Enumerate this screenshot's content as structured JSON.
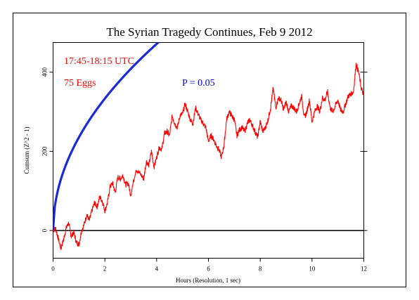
{
  "chart_data": {
    "type": "line",
    "title": "The Syrian Tragedy Continues, Feb 9 2012",
    "xlabel": "Hours (Resolution, 1 sec)",
    "ylabel": "Cumsum (Z^2 - 1)",
    "xlim": [
      0,
      12
    ],
    "ylim": [
      -70,
      475
    ],
    "x_ticks": [
      "0",
      "2",
      "4",
      "6",
      "8",
      "10",
      "12"
    ],
    "x_tick_values": [
      0,
      2,
      4,
      6,
      8,
      10,
      12
    ],
    "y_ticks": [
      "0",
      "200",
      "400"
    ],
    "y_tick_values": [
      0,
      200,
      400
    ],
    "grid": false,
    "annotations": {
      "time_range": "17:45-18:15 UTC",
      "eggs": "75 Eggs",
      "probability": "P = 0.05"
    },
    "colors": {
      "data_line": "#ff0000",
      "envelope": "#1a2bd6",
      "baseline": "#000000",
      "annotation_red": "#ff0000",
      "annotation_blue": "#0000dd"
    },
    "series": [
      {
        "role": "cumulative deviation (red)",
        "x": [
          0,
          0.1,
          0.2,
          0.3,
          0.4,
          0.5,
          0.6,
          0.7,
          0.8,
          0.9,
          1.0,
          1.1,
          1.2,
          1.3,
          1.4,
          1.5,
          1.6,
          1.7,
          1.8,
          1.9,
          2.0,
          2.1,
          2.2,
          2.3,
          2.4,
          2.5,
          2.6,
          2.7,
          2.8,
          2.9,
          3.0,
          3.2,
          3.4,
          3.5,
          3.6,
          3.7,
          3.8,
          3.9,
          4.0,
          4.1,
          4.2,
          4.3,
          4.4,
          4.5,
          4.6,
          4.7,
          4.8,
          4.9,
          5.0,
          5.1,
          5.2,
          5.3,
          5.4,
          5.5,
          5.6,
          5.7,
          5.8,
          5.9,
          6.0,
          6.1,
          6.2,
          6.3,
          6.4,
          6.5,
          6.6,
          6.7,
          6.8,
          6.9,
          7.0,
          7.1,
          7.2,
          7.3,
          7.4,
          7.5,
          7.6,
          7.7,
          7.8,
          7.9,
          8.0,
          8.1,
          8.2,
          8.3,
          8.4,
          8.5,
          8.6,
          8.7,
          8.8,
          8.9,
          9.0,
          9.1,
          9.2,
          9.3,
          9.4,
          9.5,
          9.6,
          9.7,
          9.8,
          9.9,
          10.0,
          10.1,
          10.2,
          10.3,
          10.4,
          10.5,
          10.6,
          10.7,
          10.8,
          10.9,
          11.0,
          11.1,
          11.2,
          11.3,
          11.4,
          11.5,
          11.6,
          11.7,
          11.8,
          11.9,
          12.0
        ],
        "y": [
          0,
          5,
          -20,
          -45,
          -25,
          5,
          20,
          -15,
          -5,
          -30,
          -35,
          0,
          15,
          40,
          25,
          50,
          70,
          60,
          85,
          75,
          50,
          70,
          110,
          120,
          95,
          135,
          130,
          140,
          115,
          120,
          90,
          155,
          140,
          130,
          175,
          165,
          200,
          160,
          185,
          210,
          205,
          245,
          250,
          240,
          290,
          270,
          260,
          290,
          295,
          320,
          300,
          280,
          270,
          310,
          295,
          280,
          270,
          260,
          225,
          240,
          230,
          215,
          205,
          185,
          215,
          280,
          300,
          290,
          280,
          240,
          255,
          260,
          250,
          270,
          280,
          265,
          250,
          235,
          275,
          250,
          260,
          280,
          310,
          360,
          310,
          335,
          330,
          305,
          325,
          300,
          315,
          310,
          300,
          320,
          340,
          285,
          300,
          330,
          275,
          300,
          315,
          300,
          335,
          330,
          350,
          310,
          300,
          315,
          330,
          305,
          300,
          320,
          340,
          345,
          350,
          420,
          400,
          360,
          340
        ]
      },
      {
        "role": "P = 0.05 envelope (blue)",
        "hours": 12,
        "points": 200
      }
    ]
  }
}
